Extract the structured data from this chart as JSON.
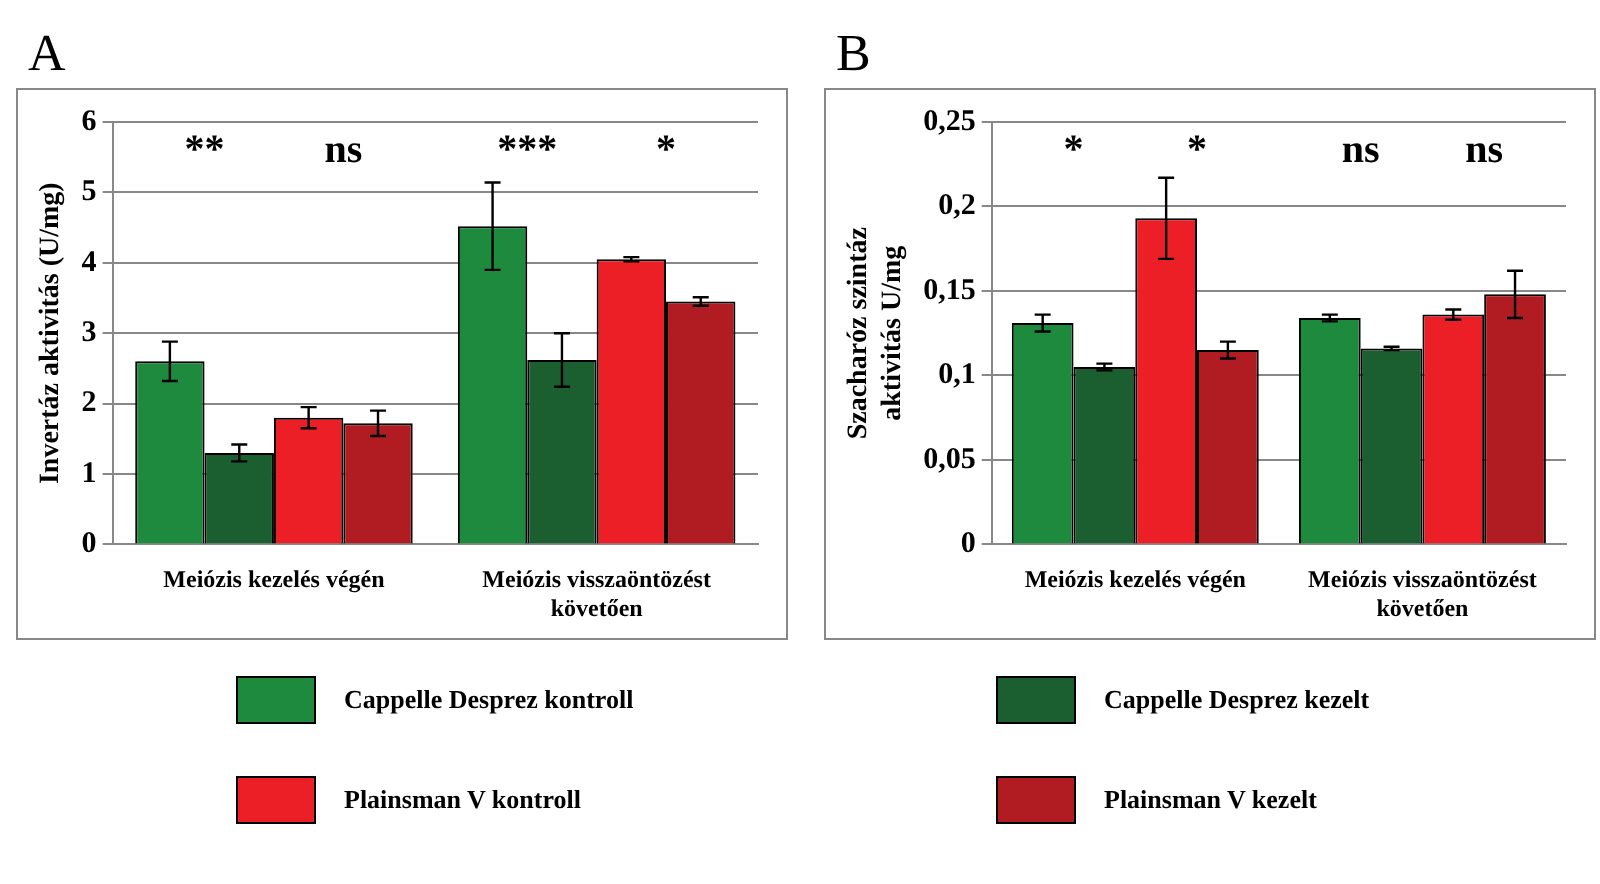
{
  "chart_data": [
    {
      "type": "bar",
      "title": "A",
      "ylabel": "Invertáz aktivitás (U/mg)",
      "categories": [
        "Meiózis kezelés végén",
        "Meiózis visszaöntözést követően"
      ],
      "series": [
        {
          "name": "Cappelle Desprez kontroll",
          "color": "#1e8a3e",
          "values": [
            2.6,
            4.52
          ],
          "errors": [
            0.28,
            0.62
          ]
        },
        {
          "name": "Cappelle Desprez kezelt",
          "color": "#1b5e30",
          "values": [
            1.3,
            2.62
          ],
          "errors": [
            0.12,
            0.38
          ]
        },
        {
          "name": "Plainsman V kontroll",
          "color": "#ec1f26",
          "values": [
            1.8,
            4.05
          ],
          "errors": [
            0.15,
            0.03
          ]
        },
        {
          "name": "Plainsman V kezelt",
          "color": "#b01c22",
          "values": [
            1.72,
            3.45
          ],
          "errors": [
            0.18,
            0.06
          ]
        }
      ],
      "ylim": [
        0,
        6
      ],
      "yticks": [
        0,
        1,
        2,
        3,
        4,
        5,
        6
      ],
      "grid": "y",
      "legend": "bottom",
      "annotations": [
        "**",
        "ns",
        "***",
        "*"
      ]
    },
    {
      "type": "bar",
      "title": "B",
      "ylabel": "Szacharóz szintáz aktivitás U/mg",
      "categories": [
        "Meiózis kezelés végén",
        "Meiózis visszaöntözést követően"
      ],
      "series": [
        {
          "color": "#1e8a3e",
          "values": [
            0.131,
            0.134
          ],
          "errors": [
            0.005,
            0.002
          ]
        },
        {
          "color": "#1b5e30",
          "values": [
            0.105,
            0.116
          ],
          "errors": [
            0.002,
            0.001
          ]
        },
        {
          "color": "#ec1f26",
          "values": [
            0.193,
            0.136
          ],
          "errors": [
            0.024,
            0.003
          ]
        },
        {
          "color": "#b01c22",
          "values": [
            0.115,
            0.148
          ],
          "errors": [
            0.005,
            0.014
          ]
        }
      ],
      "ylim": [
        0,
        0.25
      ],
      "yticks": [
        0,
        {
          "value": 0.05,
          "label": "0,05"
        },
        {
          "value": 0.1,
          "label": "0,1"
        },
        {
          "value": 0.15,
          "label": "0,15"
        },
        {
          "value": 0.2,
          "label": "0,2"
        },
        {
          "value": 0.25,
          "label": "0,25"
        }
      ],
      "grid": "y",
      "annotations": [
        "*",
        "*",
        "ns",
        "ns"
      ]
    }
  ]
}
